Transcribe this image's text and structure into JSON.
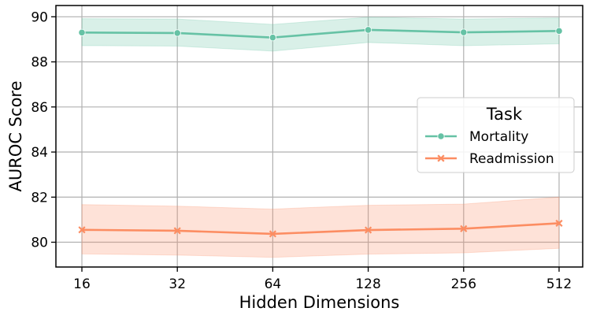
{
  "chart_data": {
    "type": "line",
    "xlabel": "Hidden Dimensions",
    "ylabel": "AUROC Score",
    "categories": [
      "16",
      "32",
      "64",
      "128",
      "256",
      "512"
    ],
    "ylim": [
      78.9,
      90.5
    ],
    "yticks": [
      80,
      82,
      84,
      86,
      88,
      90
    ],
    "yticklabels": [
      "80",
      "82",
      "84",
      "86",
      "88",
      "90"
    ],
    "grid": true,
    "legend": {
      "title": "Task",
      "placement": "center-right"
    },
    "series": [
      {
        "name": "Mortality",
        "marker": "circle",
        "color": "#66c2a5",
        "values": [
          89.3,
          89.28,
          89.08,
          89.42,
          89.31,
          89.37
        ],
        "lower": [
          88.72,
          88.7,
          88.48,
          88.86,
          88.72,
          88.8
        ],
        "upper": [
          89.92,
          89.9,
          89.66,
          89.98,
          89.9,
          89.95
        ]
      },
      {
        "name": "Readmission",
        "marker": "x",
        "color": "#fc8d62",
        "values": [
          80.55,
          80.51,
          80.37,
          80.54,
          80.6,
          80.84
        ],
        "lower": [
          79.48,
          79.43,
          79.33,
          79.47,
          79.53,
          79.73
        ],
        "upper": [
          81.67,
          81.6,
          81.47,
          81.64,
          81.69,
          82.0
        ]
      }
    ]
  }
}
